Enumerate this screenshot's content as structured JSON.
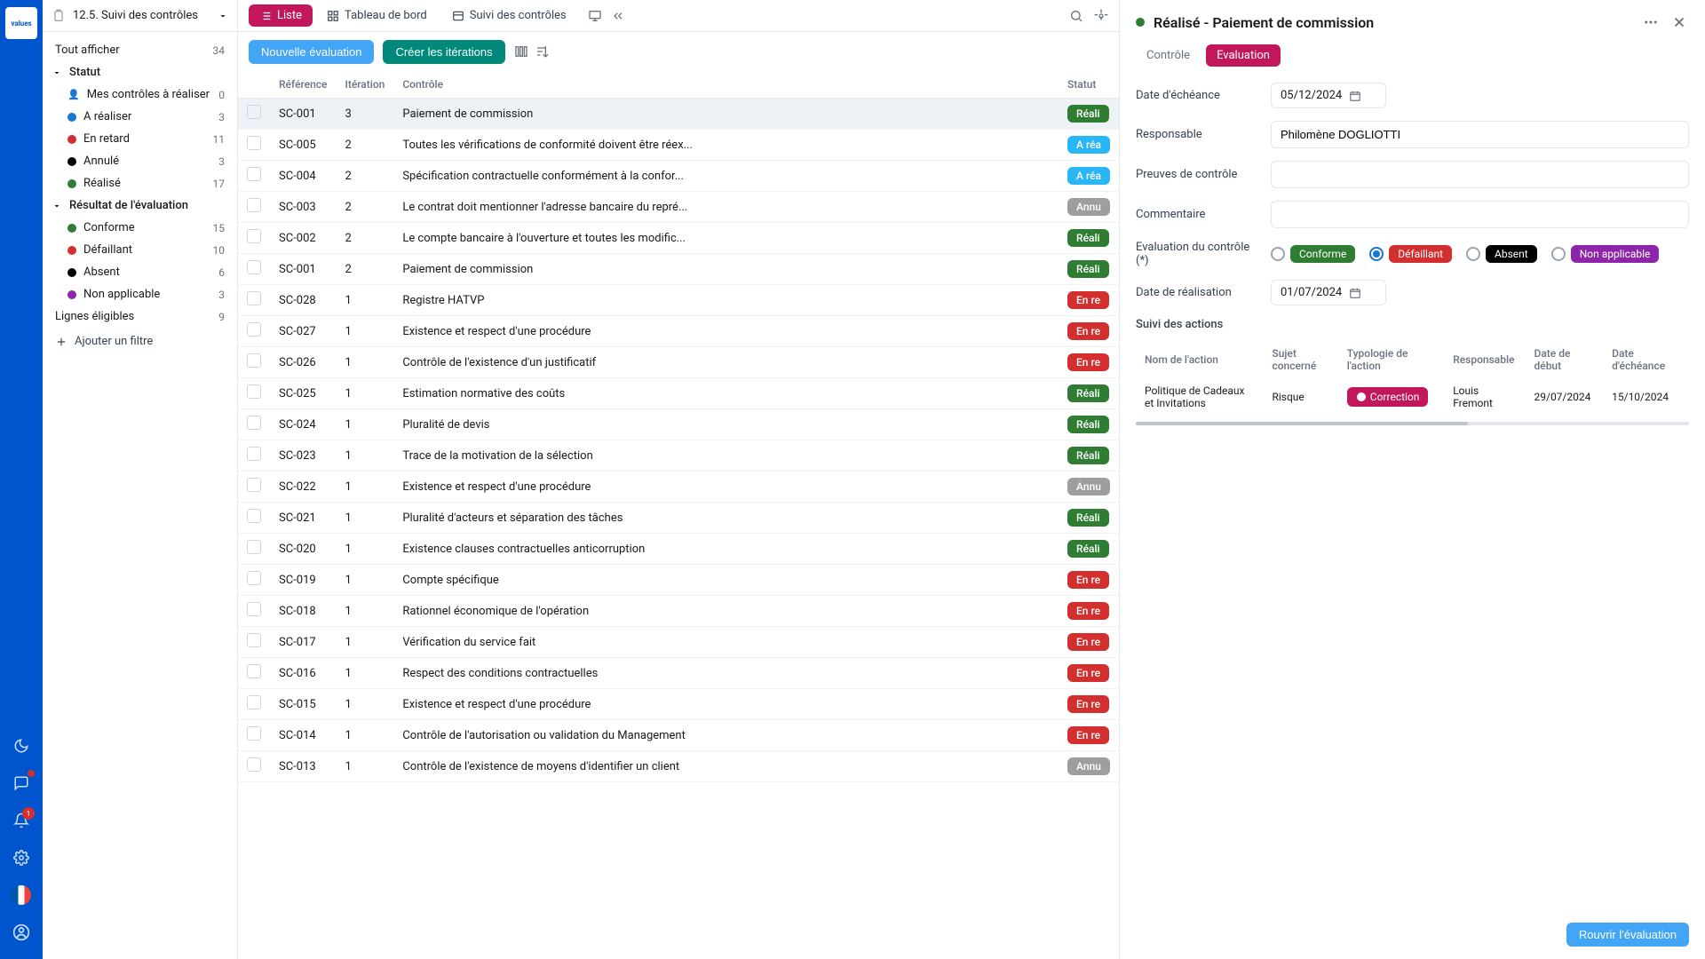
{
  "colors": {
    "rail": "#0055cc",
    "primaryPink": "#c2185b",
    "blue": "#42a5f5",
    "teal": "#00897b",
    "green": "#2e7d32",
    "red": "#d32f2f",
    "gray": "#9e9e9e",
    "lightBlue": "#29b6f6",
    "purple": "#8e24aa",
    "amber": "#ffa000",
    "black": "#000000"
  },
  "breadcrumb": "12.5. Suivi des contrôles",
  "sidebar": {
    "showAll": {
      "label": "Tout afficher",
      "count": 34
    },
    "groups": [
      {
        "label": "Statut",
        "items": [
          {
            "label": "Mes contrôles à réaliser",
            "count": 0,
            "icon": "user"
          },
          {
            "label": "A réaliser",
            "count": 3,
            "color": "#1976d2"
          },
          {
            "label": "En retard",
            "count": 11,
            "color": "#d32f2f"
          },
          {
            "label": "Annulé",
            "count": 3,
            "color": "#000000"
          },
          {
            "label": "Réalisé",
            "count": 17,
            "color": "#2e7d32"
          }
        ]
      },
      {
        "label": "Résultat de l'évaluation",
        "items": [
          {
            "label": "Conforme",
            "count": 15,
            "color": "#2e7d32"
          },
          {
            "label": "Défaillant",
            "count": 10,
            "color": "#d32f2f"
          },
          {
            "label": "Absent",
            "count": 6,
            "color": "#000000"
          },
          {
            "label": "Non applicable",
            "count": 3,
            "color": "#8e24aa"
          }
        ]
      }
    ],
    "eligible": {
      "label": "Lignes éligibles",
      "count": 9
    },
    "addFilter": "Ajouter un filtre"
  },
  "topTabs": [
    {
      "label": "Liste",
      "active": true
    },
    {
      "label": "Tableau de bord",
      "active": false
    },
    {
      "label": "Suivi des contrôles",
      "active": false
    }
  ],
  "toolbar": {
    "newEval": "Nouvelle évaluation",
    "createIter": "Créer les itérations"
  },
  "table": {
    "headers": {
      "ref": "Référence",
      "iter": "Itération",
      "ctrl": "Contrôle",
      "status": "Statut"
    },
    "statusMap": {
      "realise": {
        "label": "Réali",
        "color": "#2e7d32"
      },
      "arealiser": {
        "label": "A réa",
        "color": "#29b6f6"
      },
      "annule": {
        "label": "Annu",
        "color": "#9e9e9e"
      },
      "enretard": {
        "label": "En re",
        "color": "#d32f2f"
      }
    },
    "rows": [
      {
        "ref": "SC-001",
        "iter": "3",
        "ctrl": "Paiement de commission",
        "status": "realise",
        "sel": true
      },
      {
        "ref": "SC-005",
        "iter": "2",
        "ctrl": "Toutes les vérifications de conformité doivent être réex...",
        "status": "arealiser"
      },
      {
        "ref": "SC-004",
        "iter": "2",
        "ctrl": "Spécification contractuelle conformément à la confor...",
        "status": "arealiser"
      },
      {
        "ref": "SC-003",
        "iter": "2",
        "ctrl": "Le contrat doit mentionner l'adresse bancaire du repré...",
        "status": "annule"
      },
      {
        "ref": "SC-002",
        "iter": "2",
        "ctrl": "Le compte bancaire à l'ouverture et toutes les modific...",
        "status": "realise"
      },
      {
        "ref": "SC-001",
        "iter": "2",
        "ctrl": "Paiement de commission",
        "status": "realise"
      },
      {
        "ref": "SC-028",
        "iter": "1",
        "ctrl": "Registre HATVP",
        "status": "enretard"
      },
      {
        "ref": "SC-027",
        "iter": "1",
        "ctrl": "Existence et respect d'une procédure",
        "status": "enretard"
      },
      {
        "ref": "SC-026",
        "iter": "1",
        "ctrl": "Contrôle de l'existence d'un justificatif",
        "status": "enretard"
      },
      {
        "ref": "SC-025",
        "iter": "1",
        "ctrl": "Estimation normative des coûts",
        "status": "realise"
      },
      {
        "ref": "SC-024",
        "iter": "1",
        "ctrl": "Pluralité de devis",
        "status": "realise"
      },
      {
        "ref": "SC-023",
        "iter": "1",
        "ctrl": "Trace de la motivation de la sélection",
        "status": "realise"
      },
      {
        "ref": "SC-022",
        "iter": "1",
        "ctrl": "Existence et respect d'une procédure",
        "status": "annule"
      },
      {
        "ref": "SC-021",
        "iter": "1",
        "ctrl": "Pluralité d'acteurs et séparation des tâches",
        "status": "realise"
      },
      {
        "ref": "SC-020",
        "iter": "1",
        "ctrl": "Existence clauses contractuelles anticorruption",
        "status": "realise"
      },
      {
        "ref": "SC-019",
        "iter": "1",
        "ctrl": "Compte spécifique",
        "status": "enretard"
      },
      {
        "ref": "SC-018",
        "iter": "1",
        "ctrl": "Rationnel économique de l'opération",
        "status": "enretard"
      },
      {
        "ref": "SC-017",
        "iter": "1",
        "ctrl": "Vérification du service fait",
        "status": "enretard"
      },
      {
        "ref": "SC-016",
        "iter": "1",
        "ctrl": "Respect des conditions contractuelles",
        "status": "enretard"
      },
      {
        "ref": "SC-015",
        "iter": "1",
        "ctrl": "Existence et respect d'une procédure",
        "status": "enretard"
      },
      {
        "ref": "SC-014",
        "iter": "1",
        "ctrl": "Contrôle de l'autorisation ou validation du Management",
        "status": "enretard"
      },
      {
        "ref": "SC-013",
        "iter": "1",
        "ctrl": "Contrôle de l'existence de moyens d'identifier un client",
        "status": "annule"
      }
    ]
  },
  "detail": {
    "statusColor": "#2e7d32",
    "title": "Réalisé - Paiement de commission",
    "tabs": [
      {
        "label": "Contrôle",
        "active": false
      },
      {
        "label": "Evaluation",
        "active": true
      }
    ],
    "fields": {
      "dueDate": {
        "label": "Date d'échéance",
        "value": "05/12/2024"
      },
      "responsible": {
        "label": "Responsable",
        "value": "Philomène DOGLIOTTI"
      },
      "proofs": {
        "label": "Preuves de contrôle",
        "value": ""
      },
      "comment": {
        "label": "Commentaire",
        "value": ""
      },
      "evaluation": {
        "label": "Evaluation du contrôle (*)",
        "options": [
          {
            "label": "Conforme",
            "color": "#2e7d32",
            "selected": false
          },
          {
            "label": "Défaillant",
            "color": "#d32f2f",
            "selected": true
          },
          {
            "label": "Absent",
            "color": "#000000",
            "selected": false
          },
          {
            "label": "Non applicable",
            "color": "#8e24aa",
            "selected": false
          }
        ]
      },
      "realDate": {
        "label": "Date de réalisation",
        "value": "01/07/2024"
      }
    },
    "actions": {
      "title": "Suivi des actions",
      "headers": {
        "name": "Nom de l'action",
        "subject": "Sujet concerné",
        "type": "Typologie de l'action",
        "resp": "Responsable",
        "start": "Date de début",
        "due": "Date d'échéance"
      },
      "rows": [
        {
          "name": "Politique de Cadeaux et Invitations",
          "subject": "Risque",
          "type": "Correction",
          "resp": "Louis Fremont",
          "start": "29/07/2024",
          "due": "15/10/2024"
        }
      ]
    },
    "footerBtn": "Rouvrir l'évaluation"
  },
  "railBadge": "1"
}
